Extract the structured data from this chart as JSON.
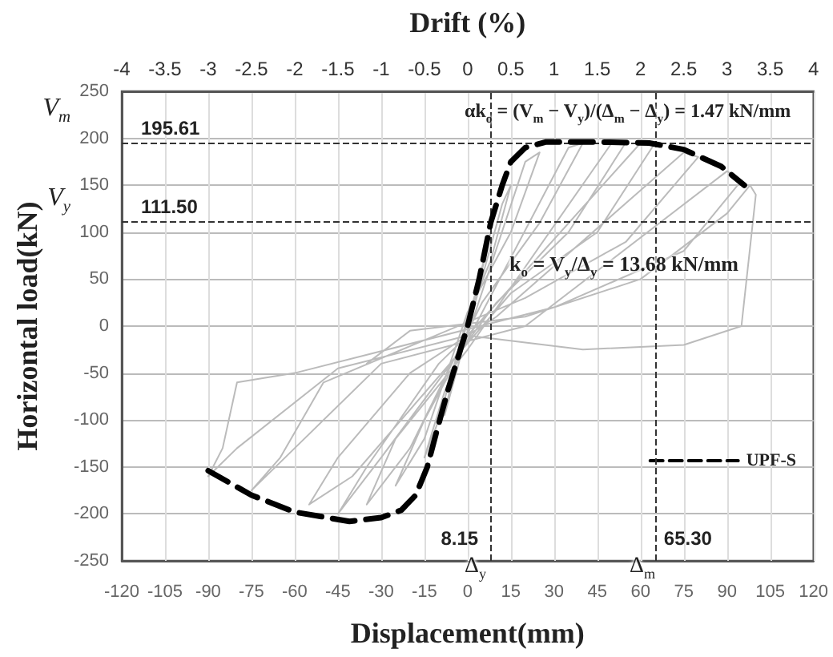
{
  "chart_data": {
    "type": "line",
    "xlabel": "Displacement(mm)",
    "ylabel": "Horizontal load(kN)",
    "x2label": "Drift (%)",
    "xlim": [
      -120,
      120
    ],
    "xticks": [
      -120,
      -105,
      -90,
      -75,
      -60,
      -45,
      -30,
      -15,
      0,
      15,
      30,
      45,
      60,
      75,
      90,
      105,
      120
    ],
    "ylim": [
      -250,
      250
    ],
    "yticks": [
      -250,
      -200,
      -150,
      -100,
      -50,
      0,
      50,
      100,
      150,
      200,
      250
    ],
    "x2lim": [
      -4,
      4
    ],
    "x2ticks": [
      -4,
      -3.5,
      -3,
      -2.5,
      -2,
      -1.5,
      -1,
      -0.5,
      0,
      0.5,
      1,
      1.5,
      2,
      2.5,
      3,
      3.5,
      4
    ],
    "grid": true,
    "legend": "bottom right",
    "marker": "none",
    "series": [
      {
        "color": "#bbbbbb",
        "line_style": "solid",
        "x": [
          0,
          5,
          8,
          4,
          0,
          -5,
          -8,
          -4,
          0,
          12,
          15,
          8,
          0,
          -10,
          -15,
          -8,
          0,
          20,
          25,
          15,
          0,
          -15,
          -25,
          -15,
          0,
          35,
          40,
          25,
          5,
          -20,
          -35,
          -25,
          0,
          50,
          55,
          35,
          10,
          -30,
          -45,
          -35,
          -10,
          0,
          60,
          65,
          45,
          15,
          -40,
          -55,
          -45,
          -20,
          10,
          75,
          80,
          55,
          20,
          -50,
          -65,
          -75,
          -60,
          -30,
          20,
          90,
          95,
          75,
          30,
          -60,
          -80,
          -85,
          -90,
          -80,
          -45,
          0,
          40,
          75,
          95,
          100,
          98,
          90,
          60,
          20,
          -20,
          -35
        ],
        "values": [
          0,
          60,
          100,
          50,
          5,
          -50,
          -95,
          -50,
          -5,
          130,
          150,
          70,
          10,
          -100,
          -140,
          -70,
          -10,
          175,
          185,
          100,
          15,
          -120,
          -170,
          -100,
          -15,
          190,
          195,
          110,
          25,
          -130,
          -190,
          -120,
          -25,
          195,
          196,
          100,
          25,
          -140,
          -200,
          -150,
          -40,
          -10,
          195,
          195,
          100,
          35,
          -160,
          -190,
          -140,
          -50,
          10,
          185,
          180,
          90,
          30,
          -60,
          -140,
          -175,
          -130,
          -40,
          0,
          165,
          155,
          80,
          20,
          -50,
          -60,
          -130,
          -160,
          -130,
          -45,
          -10,
          -25,
          -20,
          0,
          140,
          150,
          120,
          50,
          10,
          -5,
          -40
        ]
      },
      {
        "name": "UPF-S",
        "color": "#000000",
        "line_style": "dashed",
        "x": [
          -90,
          -75,
          -60,
          -41,
          -30,
          -23,
          -18,
          -14,
          -11,
          -7,
          -3,
          0,
          4,
          8,
          12,
          15,
          20,
          27,
          45,
          63,
          75,
          88,
          96
        ],
        "values": [
          -154,
          -180,
          -198,
          -208,
          -204,
          -196,
          -180,
          -150,
          -115,
          -70,
          -30,
          0,
          50,
          110,
          150,
          175,
          190,
          196,
          196,
          195,
          188,
          170,
          150
        ]
      }
    ],
    "ref_lines": [
      {
        "axis": "y",
        "value": 195.61,
        "label": "195.61",
        "line_style": "dashed",
        "color": "#333333"
      },
      {
        "axis": "y",
        "value": 111.5,
        "label": "111.50",
        "line_style": "dashed",
        "color": "#333333"
      },
      {
        "axis": "x",
        "value": 8.15,
        "label": "8.15",
        "line_style": "dashed",
        "color": "#333333"
      },
      {
        "axis": "x",
        "value": 65.3,
        "label": "65.30",
        "line_style": "dashed",
        "color": "#333333"
      }
    ],
    "annotations": [
      "αk$_{o}$ = (V$_{m}$ − V$_{y}$)/(Δ$_{m}$ − Δ$_{y}$) = 1.47 kN/mm",
      "k$_{o}$ = V$_{y}$/Δ$_{y}$ = 13.68 kN/mm",
      "V$_{m}$",
      "V$_{y}$",
      "Δ$_{y}$",
      "Δ$_{m}$"
    ]
  }
}
